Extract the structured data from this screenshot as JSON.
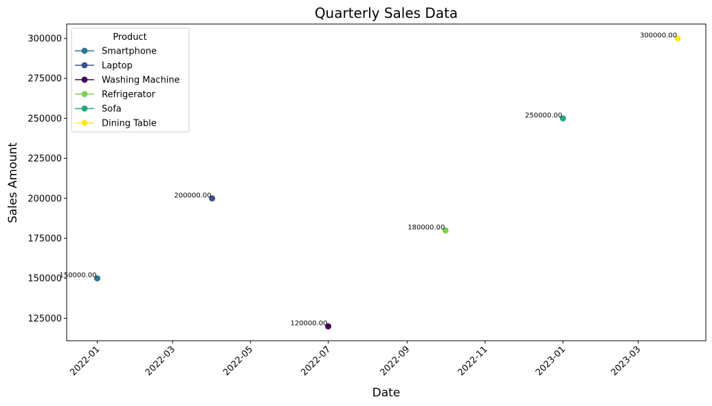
{
  "chart_data": {
    "type": "scatter",
    "title": "Quarterly Sales Data",
    "xlabel": "Date",
    "ylabel": "Sales Amount",
    "x_ticks": [
      "2022-01",
      "2022-03",
      "2022-05",
      "2022-07",
      "2022-09",
      "2022-11",
      "2023-01",
      "2023-03"
    ],
    "y_ticks": [
      125000,
      150000,
      175000,
      200000,
      225000,
      250000,
      275000,
      300000
    ],
    "ylim": [
      111000,
      309000
    ],
    "xlim": [
      "2021-12-08",
      "2023-04-23"
    ],
    "grid": false,
    "legend": {
      "title": "Product",
      "position": "top-left"
    },
    "series": [
      {
        "name": "Smartphone",
        "color": "#2a788e",
        "points": [
          {
            "x": "2022-01-01",
            "y": 150000,
            "label": "150000.00"
          }
        ]
      },
      {
        "name": "Laptop",
        "color": "#3b528b",
        "points": [
          {
            "x": "2022-04-01",
            "y": 200000,
            "label": "200000.00"
          }
        ]
      },
      {
        "name": "Washing Machine",
        "color": "#440154",
        "points": [
          {
            "x": "2022-07-01",
            "y": 120000,
            "label": "120000.00"
          }
        ]
      },
      {
        "name": "Refrigerator",
        "color": "#7ad151",
        "points": [
          {
            "x": "2022-10-01",
            "y": 180000,
            "label": "180000.00"
          }
        ]
      },
      {
        "name": "Sofa",
        "color": "#22a884",
        "points": [
          {
            "x": "2023-01-01",
            "y": 250000,
            "label": "250000.00"
          }
        ]
      },
      {
        "name": "Dining Table",
        "color": "#fde725",
        "points": [
          {
            "x": "2023-04-01",
            "y": 300000,
            "label": "300000.00"
          }
        ]
      }
    ]
  }
}
